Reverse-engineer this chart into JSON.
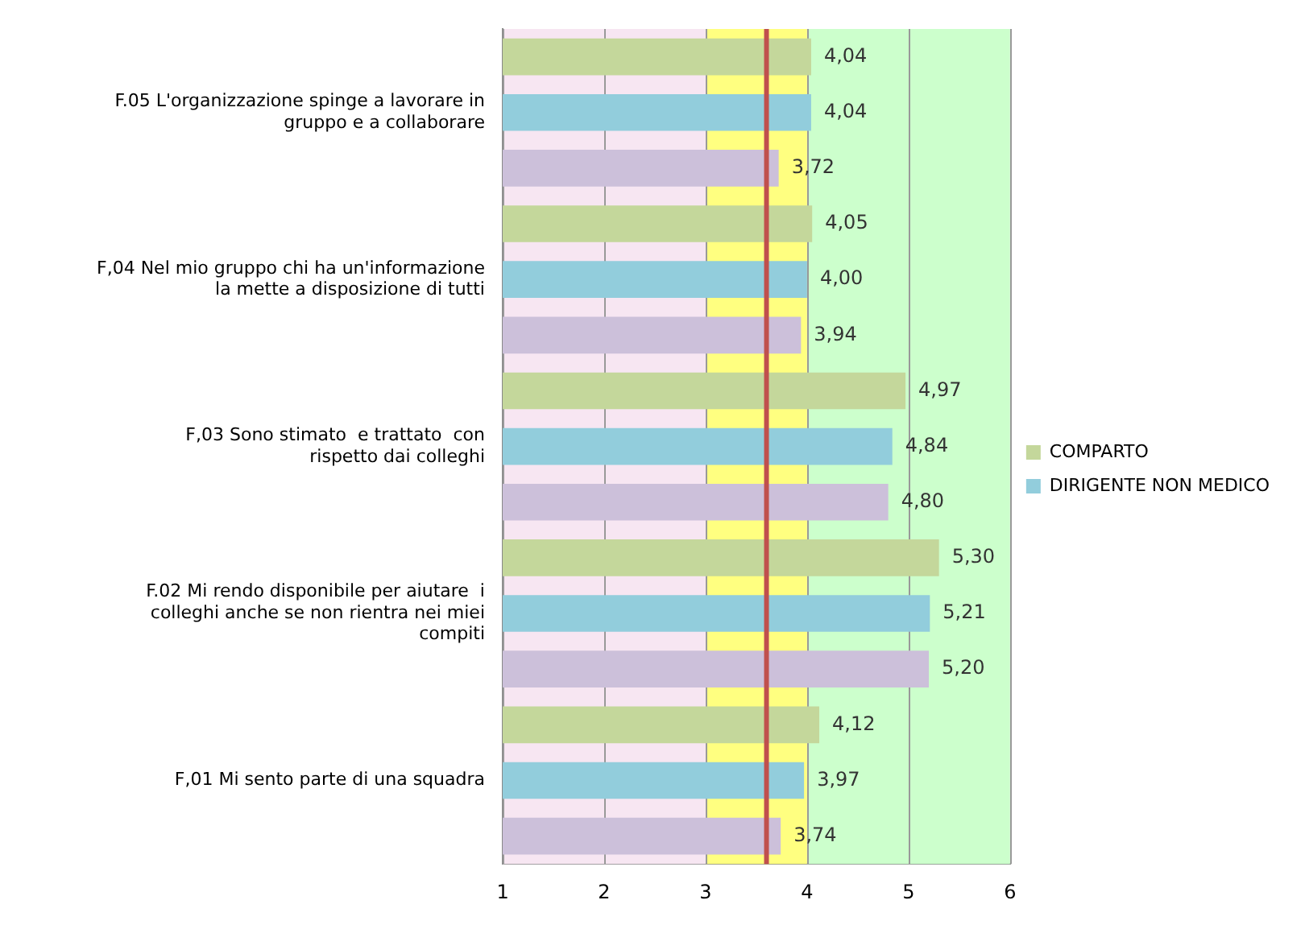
{
  "chart_data": {
    "type": "bar",
    "orientation": "horizontal",
    "categories": [
      "F.05 L'organizzazione spinge a lavorare in gruppo e a collaborare",
      "F,04 Nel mio gruppo chi ha un'informazione la mette a disposizione di tutti",
      "F,03 Sono stimato  e trattato  con rispetto dai colleghi",
      "F.02 Mi rendo disponibile per aiutare  i colleghi anche se non rientra nei miei compiti",
      "F,01 Mi sento parte di una squadra"
    ],
    "series": [
      {
        "name": "COMPARTO",
        "color": "#c4d79b",
        "values": [
          4.04,
          4.05,
          4.97,
          5.3,
          4.12
        ],
        "value_labels": [
          "4,04",
          "4,05",
          "4,97",
          "5,30",
          "4,12"
        ]
      },
      {
        "name": "DIRIGENTE NON MEDICO",
        "color": "#92cddc",
        "values": [
          4.04,
          4.0,
          4.84,
          5.21,
          3.97
        ],
        "value_labels": [
          "4,04",
          "4,00",
          "4,84",
          "5,21",
          "3,97"
        ]
      },
      {
        "color": "#ccc0da",
        "values": [
          3.72,
          3.94,
          4.8,
          5.2,
          3.74
        ],
        "value_labels": [
          "3,72",
          "3,94",
          "4,80",
          "5,20",
          "3,74"
        ]
      }
    ],
    "xlim": [
      1,
      6
    ],
    "xticks": [
      1,
      2,
      3,
      4,
      5,
      6
    ],
    "grid": "x",
    "legend": "right",
    "bands": [
      {
        "axis": "x",
        "from": 1,
        "to": 3,
        "color": "#f7e6f2"
      },
      {
        "axis": "x",
        "from": 3,
        "to": 4,
        "color": "#ffff80"
      },
      {
        "axis": "x",
        "from": 4,
        "to": 6,
        "color": "#ccffcc"
      }
    ],
    "ref_lines": [
      {
        "axis": "x",
        "value": 3.6,
        "color": "#c0504d"
      }
    ]
  }
}
